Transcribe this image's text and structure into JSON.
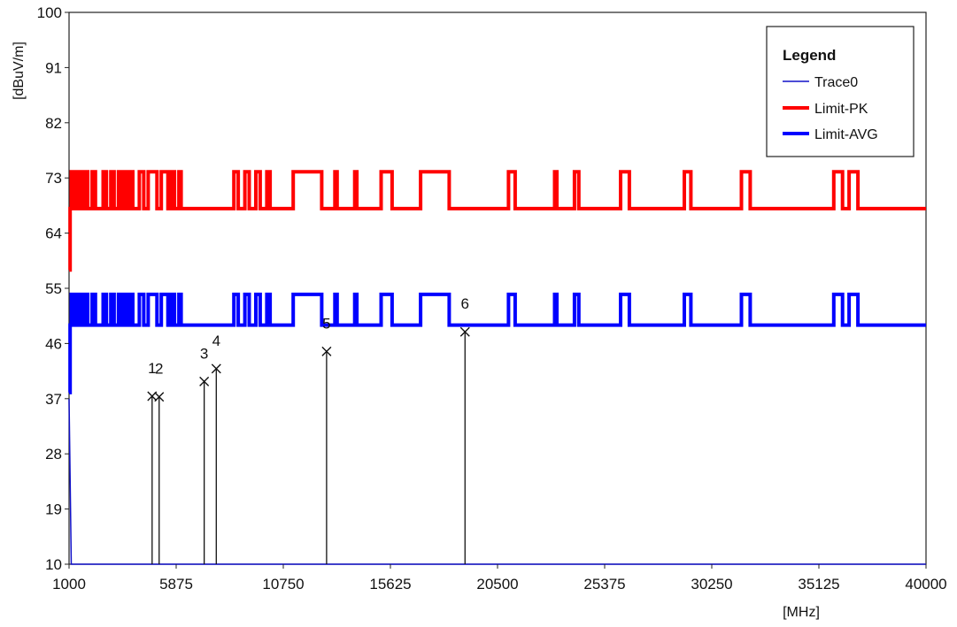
{
  "chart_data": {
    "type": "line",
    "title": "",
    "xlabel": "[MHz]",
    "ylabel": "[dBuV/m]",
    "xlim": [
      1000,
      40000
    ],
    "ylim": [
      10,
      100
    ],
    "x_ticks": [
      "1000",
      "5875",
      "10750",
      "15625",
      "20500",
      "25375",
      "30250",
      "35125",
      "40000"
    ],
    "y_ticks": [
      "100",
      "91",
      "82",
      "73",
      "64",
      "55",
      "46",
      "37",
      "28",
      "19",
      "10"
    ],
    "grid": false,
    "legend": {
      "title": "Legend",
      "position": "top-right",
      "entries": [
        "Trace0",
        "Limit-PK",
        "Limit-AVG"
      ]
    },
    "series": [
      {
        "name": "Trace0",
        "color": "#1010c8",
        "values": [
          [
            1000,
            37
          ],
          [
            1100,
            10
          ],
          [
            40000,
            10
          ]
        ]
      },
      {
        "name": "Limit-PK",
        "color": "#ff0000",
        "points": [
          [
            1000,
            58
          ],
          [
            1050,
            68
          ],
          [
            1100,
            74
          ],
          [
            1250,
            68
          ],
          [
            1400,
            74
          ],
          [
            1550,
            68
          ],
          [
            1700,
            74
          ],
          [
            1850,
            68
          ],
          [
            2050,
            74
          ],
          [
            2200,
            68
          ],
          [
            2550,
            74
          ],
          [
            2700,
            68
          ],
          [
            2900,
            74
          ],
          [
            3050,
            68
          ],
          [
            3250,
            74
          ],
          [
            3400,
            68
          ],
          [
            3550,
            74
          ],
          [
            3700,
            68
          ],
          [
            3800,
            74
          ],
          [
            3900,
            68
          ],
          [
            4200,
            74
          ],
          [
            4400,
            68
          ],
          [
            4600,
            74
          ],
          [
            5000,
            68
          ],
          [
            5200,
            74
          ],
          [
            5500,
            68
          ],
          [
            5650,
            74
          ],
          [
            5800,
            68
          ],
          [
            6000,
            74
          ],
          [
            6100,
            68
          ],
          [
            8500,
            74
          ],
          [
            8700,
            68
          ],
          [
            9000,
            74
          ],
          [
            9200,
            68
          ],
          [
            9500,
            74
          ],
          [
            9700,
            68
          ],
          [
            10000,
            74
          ],
          [
            10150,
            68
          ],
          [
            11200,
            74
          ],
          [
            12500,
            68
          ],
          [
            13100,
            74
          ],
          [
            13200,
            68
          ],
          [
            14000,
            74
          ],
          [
            14100,
            68
          ],
          [
            15200,
            74
          ],
          [
            15700,
            68
          ],
          [
            17000,
            74
          ],
          [
            18300,
            68
          ],
          [
            21000,
            74
          ],
          [
            21300,
            68
          ],
          [
            23100,
            74
          ],
          [
            23200,
            68
          ],
          [
            24000,
            74
          ],
          [
            24200,
            68
          ],
          [
            26100,
            74
          ],
          [
            26500,
            68
          ],
          [
            29000,
            74
          ],
          [
            29300,
            68
          ],
          [
            31600,
            74
          ],
          [
            32000,
            68
          ],
          [
            35800,
            74
          ],
          [
            36200,
            68
          ],
          [
            36500,
            74
          ],
          [
            36900,
            68
          ],
          [
            40000,
            68
          ]
        ]
      },
      {
        "name": "Limit-AVG",
        "color": "#0000ff",
        "points": [
          [
            1000,
            38
          ],
          [
            1050,
            49
          ],
          [
            1100,
            54
          ],
          [
            1250,
            49
          ],
          [
            1400,
            54
          ],
          [
            1550,
            49
          ],
          [
            1700,
            54
          ],
          [
            1850,
            49
          ],
          [
            2050,
            54
          ],
          [
            2200,
            49
          ],
          [
            2550,
            54
          ],
          [
            2700,
            49
          ],
          [
            2900,
            54
          ],
          [
            3050,
            49
          ],
          [
            3250,
            54
          ],
          [
            3400,
            49
          ],
          [
            3550,
            54
          ],
          [
            3700,
            49
          ],
          [
            3800,
            54
          ],
          [
            3900,
            49
          ],
          [
            4200,
            54
          ],
          [
            4400,
            49
          ],
          [
            4600,
            54
          ],
          [
            5000,
            49
          ],
          [
            5200,
            54
          ],
          [
            5500,
            49
          ],
          [
            5650,
            54
          ],
          [
            5800,
            49
          ],
          [
            6000,
            54
          ],
          [
            6100,
            49
          ],
          [
            8500,
            54
          ],
          [
            8700,
            49
          ],
          [
            9000,
            54
          ],
          [
            9200,
            49
          ],
          [
            9500,
            54
          ],
          [
            9700,
            49
          ],
          [
            10000,
            54
          ],
          [
            10150,
            49
          ],
          [
            11200,
            54
          ],
          [
            12500,
            49
          ],
          [
            13100,
            54
          ],
          [
            13200,
            49
          ],
          [
            14000,
            54
          ],
          [
            14100,
            49
          ],
          [
            15200,
            54
          ],
          [
            15700,
            49
          ],
          [
            17000,
            54
          ],
          [
            18300,
            49
          ],
          [
            21000,
            54
          ],
          [
            21300,
            49
          ],
          [
            23100,
            54
          ],
          [
            23200,
            49
          ],
          [
            24000,
            54
          ],
          [
            24200,
            49
          ],
          [
            26100,
            54
          ],
          [
            26500,
            49
          ],
          [
            29000,
            54
          ],
          [
            29300,
            49
          ],
          [
            31600,
            54
          ],
          [
            32000,
            49
          ],
          [
            35800,
            54
          ],
          [
            36200,
            49
          ],
          [
            36500,
            54
          ],
          [
            36900,
            49
          ],
          [
            40000,
            49
          ]
        ]
      }
    ],
    "markers": [
      {
        "label": "1",
        "x": 4780,
        "y": 37.4
      },
      {
        "label": "2",
        "x": 5100,
        "y": 37.3
      },
      {
        "label": "3",
        "x": 7150,
        "y": 39.8
      },
      {
        "label": "4",
        "x": 7700,
        "y": 41.9
      },
      {
        "label": "5",
        "x": 12720,
        "y": 44.7
      },
      {
        "label": "6",
        "x": 19020,
        "y": 47.9
      }
    ]
  }
}
